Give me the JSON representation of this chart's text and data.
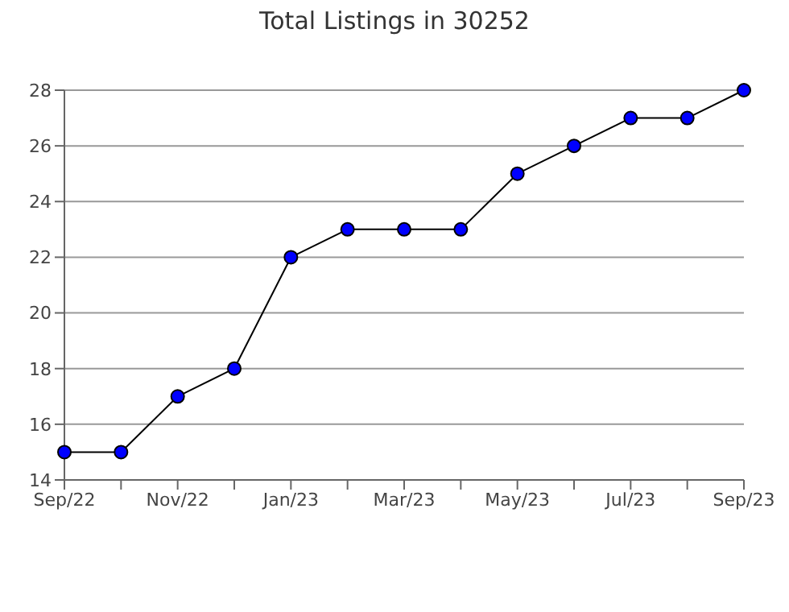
{
  "chart_data": {
    "type": "line",
    "title": "Total Listings in 30252",
    "categories": [
      "Sep/22",
      null,
      "Nov/22",
      null,
      "Jan/23",
      null,
      "Mar/23",
      null,
      "May/23",
      null,
      "Jul/23",
      null,
      "Sep/23"
    ],
    "series": [
      {
        "color": "#0000ff",
        "values": [
          15,
          15,
          17,
          18,
          22,
          23,
          23,
          23,
          25,
          26,
          27,
          27,
          28
        ]
      }
    ],
    "ylim": [
      14,
      28
    ],
    "yticks": [
      14,
      16,
      18,
      20,
      22,
      24,
      26,
      28
    ],
    "grid": "y",
    "marker": "circle",
    "line_style": "solid"
  }
}
